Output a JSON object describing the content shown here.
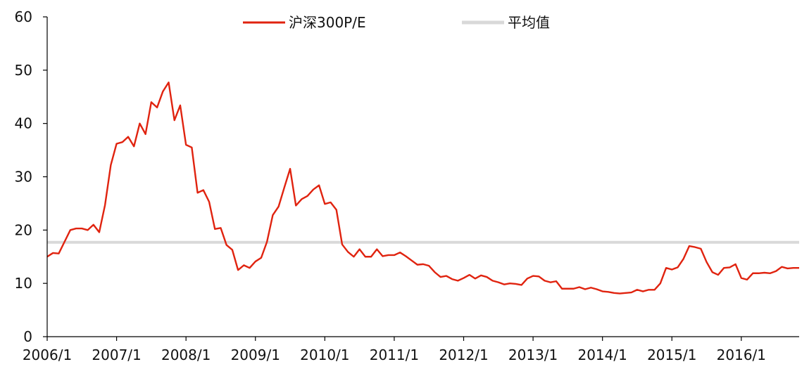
{
  "chart_data": {
    "type": "line",
    "title": "",
    "xlabel": "",
    "ylabel": "",
    "ylim": [
      0,
      60
    ],
    "yticks": [
      0,
      10,
      20,
      30,
      40,
      50,
      60
    ],
    "xticks": [
      "2006/1",
      "2007/1",
      "2008/1",
      "2009/1",
      "2010/1",
      "2011/1",
      "2012/1",
      "2013/1",
      "2014/1",
      "2015/1",
      "2016/1"
    ],
    "grid": false,
    "legend_position": "top-center",
    "series": [
      {
        "name": "沪深300P/E",
        "color": "#e0230f",
        "x": [
          "2006/1",
          "2006/2",
          "2006/3",
          "2006/4",
          "2006/5",
          "2006/6",
          "2006/7",
          "2006/8",
          "2006/9",
          "2006/10",
          "2006/11",
          "2006/12",
          "2007/1",
          "2007/2",
          "2007/3",
          "2007/4",
          "2007/5",
          "2007/6",
          "2007/7",
          "2007/8",
          "2007/9",
          "2007/10",
          "2007/11",
          "2007/12",
          "2008/1",
          "2008/2",
          "2008/3",
          "2008/4",
          "2008/5",
          "2008/6",
          "2008/7",
          "2008/8",
          "2008/9",
          "2008/10",
          "2008/11",
          "2008/12",
          "2009/1",
          "2009/2",
          "2009/3",
          "2009/4",
          "2009/5",
          "2009/6",
          "2009/7",
          "2009/8",
          "2009/9",
          "2009/10",
          "2009/11",
          "2009/12",
          "2010/1",
          "2010/2",
          "2010/3",
          "2010/4",
          "2010/5",
          "2010/6",
          "2010/7",
          "2010/8",
          "2010/9",
          "2010/10",
          "2010/11",
          "2010/12",
          "2011/1",
          "2011/2",
          "2011/3",
          "2011/4",
          "2011/5",
          "2011/6",
          "2011/7",
          "2011/8",
          "2011/9",
          "2011/10",
          "2011/11",
          "2011/12",
          "2012/1",
          "2012/2",
          "2012/3",
          "2012/4",
          "2012/5",
          "2012/6",
          "2012/7",
          "2012/8",
          "2012/9",
          "2012/10",
          "2012/11",
          "2012/12",
          "2013/1",
          "2013/2",
          "2013/3",
          "2013/4",
          "2013/5",
          "2013/6",
          "2013/7",
          "2013/8",
          "2013/9",
          "2013/10",
          "2013/11",
          "2013/12",
          "2014/1",
          "2014/2",
          "2014/3",
          "2014/4",
          "2014/5",
          "2014/6",
          "2014/7",
          "2014/8",
          "2014/9",
          "2014/10",
          "2014/11",
          "2014/12",
          "2015/1",
          "2015/2",
          "2015/3",
          "2015/4",
          "2015/5",
          "2015/6",
          "2015/7",
          "2015/8",
          "2015/9",
          "2015/10",
          "2015/11",
          "2015/12",
          "2016/1",
          "2016/2",
          "2016/3",
          "2016/4",
          "2016/5",
          "2016/6",
          "2016/7",
          "2016/8",
          "2016/9",
          "2016/10",
          "2016/11"
        ],
        "values": [
          15.0,
          15.7,
          15.6,
          17.8,
          20.0,
          20.3,
          20.3,
          20.0,
          21.0,
          19.6,
          24.7,
          32.2,
          36.2,
          36.5,
          37.5,
          35.7,
          40.0,
          38.0,
          44.0,
          43.0,
          46.0,
          47.7,
          40.6,
          43.4,
          36.0,
          35.5,
          27.0,
          27.5,
          25.3,
          20.2,
          20.4,
          17.2,
          16.3,
          12.5,
          13.4,
          12.9,
          14.1,
          14.8,
          17.8,
          22.8,
          24.4,
          28.0,
          31.5,
          24.6,
          25.8,
          26.4,
          27.6,
          28.4,
          24.9,
          25.2,
          23.8,
          17.3,
          15.9,
          15.0,
          16.4,
          15.0,
          15.0,
          16.4,
          15.1,
          15.3,
          15.3,
          15.8,
          15.1,
          14.3,
          13.5,
          13.6,
          13.3,
          12.1,
          11.2,
          11.4,
          10.8,
          10.5,
          11.0,
          11.6,
          10.9,
          11.5,
          11.2,
          10.5,
          10.2,
          9.8,
          10.0,
          9.9,
          9.7,
          10.9,
          11.4,
          11.3,
          10.5,
          10.2,
          10.4,
          9.0,
          9.0,
          9.0,
          9.3,
          8.9,
          9.2,
          8.9,
          8.5,
          8.4,
          8.2,
          8.1,
          8.2,
          8.3,
          8.8,
          8.5,
          8.8,
          8.8,
          10.0,
          12.9,
          12.6,
          13.0,
          14.6,
          17.0,
          16.8,
          16.5,
          14.0,
          12.1,
          11.6,
          12.9,
          13.0,
          13.6,
          11.0,
          10.7,
          11.9,
          11.9,
          12.0,
          11.9,
          12.3,
          13.1,
          12.8,
          12.9,
          12.9
        ]
      },
      {
        "name": "平均值",
        "color": "#d9d9d9",
        "constant": 17.7
      }
    ]
  }
}
